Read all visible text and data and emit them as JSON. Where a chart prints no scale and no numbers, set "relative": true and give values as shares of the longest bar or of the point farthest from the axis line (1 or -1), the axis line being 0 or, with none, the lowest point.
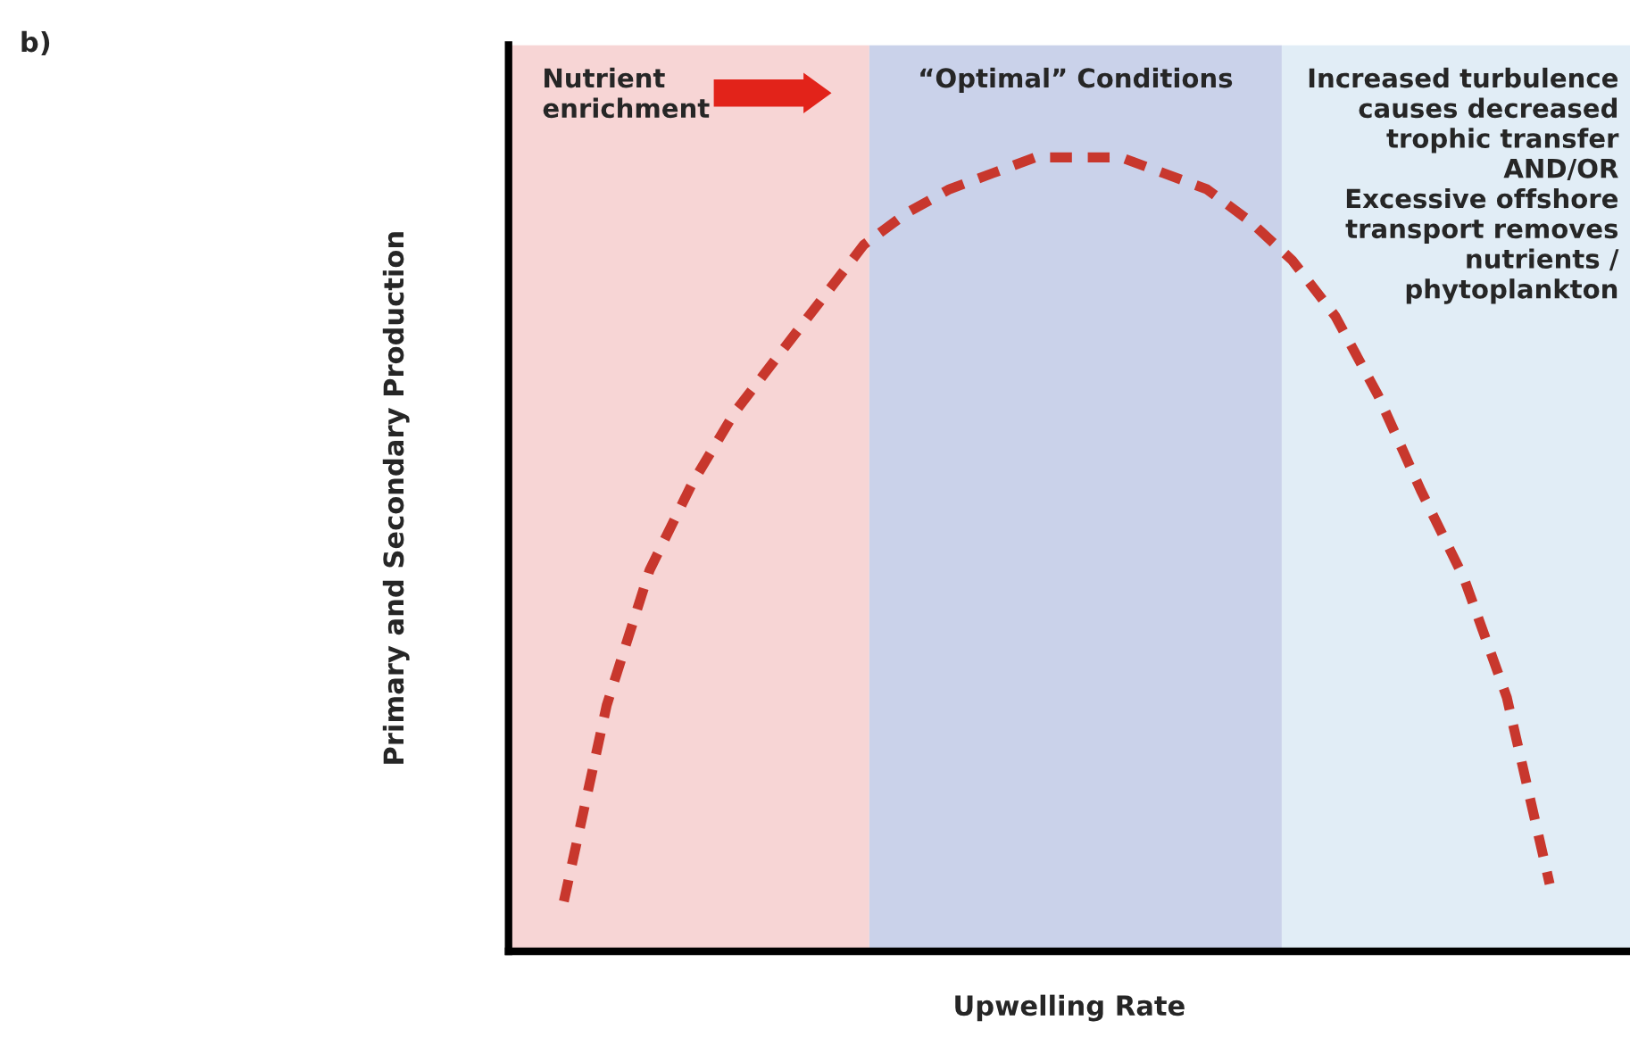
{
  "chart_data": {
    "type": "line",
    "relative": true,
    "xlabel": "Upwelling Rate",
    "ylabel": "Primary and Secondary Production",
    "annotations": [
      "b)",
      "Nutrient\nenrichment",
      "“Optimal” Conditions",
      "Increased turbulence\ncauses decreased\ntrophic transfer\nAND/OR\nExcessive offshore\ntransport removes\nnutrients /\nphytoplankton"
    ],
    "categories": [
      null,
      null,
      null,
      null,
      null,
      null,
      null,
      null,
      null,
      null,
      null,
      null,
      null,
      null,
      null,
      null,
      null,
      null,
      null,
      null,
      null,
      null,
      null,
      null
    ],
    "series": [
      {
        "color": "#c8372d",
        "values": [
          0.063,
          0.31,
          0.48,
          0.59,
          0.68,
          0.75,
          0.82,
          0.89,
          0.93,
          0.96,
          0.98,
          1.0,
          1.0,
          1.0,
          0.98,
          0.96,
          0.92,
          0.87,
          0.8,
          0.7,
          0.58,
          0.47,
          0.32,
          0.085
        ]
      }
    ],
    "line_style": "dashed",
    "marker": "none",
    "legend": false
  }
}
